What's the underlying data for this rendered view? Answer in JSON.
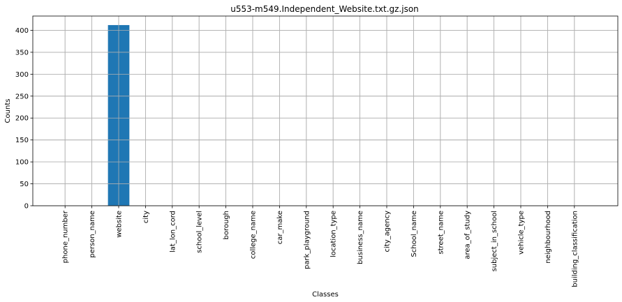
{
  "chart_data": {
    "type": "bar",
    "title": "u553-m549.Independent_Website.txt.gz.json",
    "xlabel": "Classes",
    "ylabel": "Counts",
    "categories": [
      "phone_number",
      "person_name",
      "website",
      "city",
      "lat_lon_cord",
      "school_level",
      "borough",
      "college_name",
      "car_make",
      "park_playground",
      "location_type",
      "business_name",
      "city_agency",
      "School_name",
      "street_name",
      "area_of_study",
      "subject_in_school",
      "vehicle_type",
      "neighbourhood",
      "building_classification"
    ],
    "values": [
      0,
      0,
      412,
      0,
      0,
      0,
      0,
      0,
      0,
      0,
      0,
      0,
      0,
      0,
      0,
      0,
      0,
      0,
      0,
      0
    ],
    "ylim": [
      0,
      432.6
    ],
    "yticks": [
      0,
      50,
      100,
      150,
      200,
      250,
      300,
      350,
      400
    ],
    "grid": true,
    "bar_color": "#1f77b4"
  }
}
